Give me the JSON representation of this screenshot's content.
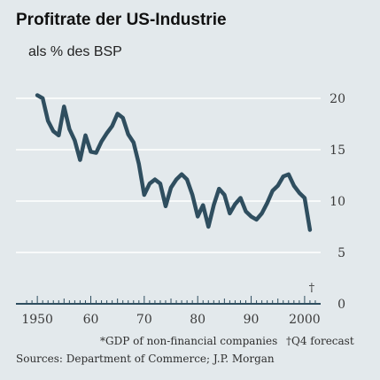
{
  "title": "Profitrate der US-Industrie",
  "subtitle": "als % des BSP",
  "footnote": "*GDP of non-financial companies",
  "forecast_note": "†Q4 forecast",
  "sources": "Sources: Department of Commerce; J.P. Morgan",
  "colors": {
    "background": "#e3e9ec",
    "line": "#2f4e5f",
    "grid": "#ffffff",
    "axis": "#2f4e5f",
    "text": "#222222"
  },
  "chart_data": {
    "type": "line",
    "title": "Profitrate der US-Industrie",
    "subtitle": "als % des BSP",
    "xlabel": "",
    "ylabel": "",
    "xlim": [
      1946,
      2003
    ],
    "ylim": [
      0,
      20
    ],
    "y_ticks": [
      0,
      5,
      10,
      15,
      20
    ],
    "y_tick_labels": [
      "0",
      "5",
      "10",
      "15",
      "20"
    ],
    "x_ticks": [
      1950,
      1960,
      1970,
      1980,
      1990,
      2000
    ],
    "x_tick_labels": [
      "1950",
      "60",
      "70",
      "80",
      "90",
      "2000"
    ],
    "grid": "horizontal",
    "y_axis_side": "right",
    "forecast_marker": {
      "x": 2001,
      "label": "†"
    },
    "series": [
      {
        "x": [
          1950,
          1951,
          1952,
          1953,
          1954,
          1955,
          1956,
          1957,
          1958,
          1959,
          1960,
          1961,
          1962,
          1963,
          1964,
          1965,
          1966,
          1967,
          1968,
          1969,
          1970,
          1971,
          1972,
          1973,
          1974,
          1975,
          1976,
          1977,
          1978,
          1979,
          1980,
          1981,
          1982,
          1983,
          1984,
          1985,
          1986,
          1987,
          1988,
          1989,
          1990,
          1991,
          1992,
          1993,
          1994,
          1995,
          1996,
          1997,
          1998,
          1999,
          2000,
          2001
        ],
        "y": [
          20.3,
          20.0,
          17.8,
          16.8,
          16.4,
          19.2,
          17.0,
          15.9,
          14.0,
          16.4,
          14.8,
          14.7,
          15.8,
          16.6,
          17.3,
          18.5,
          18.1,
          16.5,
          15.7,
          13.6,
          10.6,
          11.7,
          12.1,
          11.7,
          9.5,
          11.3,
          12.1,
          12.6,
          12.1,
          10.6,
          8.5,
          9.6,
          7.5,
          9.6,
          11.2,
          10.6,
          8.8,
          9.7,
          10.3,
          9.0,
          8.5,
          8.2,
          8.8,
          9.8,
          11.0,
          11.5,
          12.4,
          12.6,
          11.5,
          10.8,
          10.3,
          7.2
        ]
      }
    ]
  }
}
